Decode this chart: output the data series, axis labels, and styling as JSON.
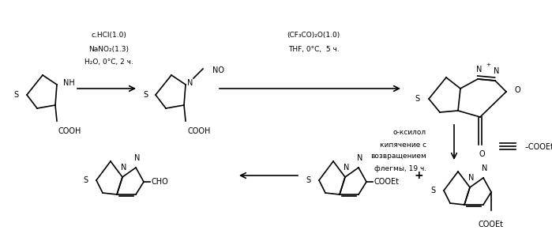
{
  "bg_color": "#ffffff",
  "fig_width": 6.99,
  "fig_height": 2.96,
  "dpi": 100,
  "text_color": "#000000",
  "lw": 1.2,
  "fs": 7.0,
  "fs_label": 6.5,
  "arrow_conditions": {
    "arrow1_label": [
      "c.HCl(1.0)",
      "NaNO₂(1.3)",
      "H₂O, 0°C, 2 ч."
    ],
    "arrow2_label": [
      "(CF₃CO)₂O(1.0)",
      "THF, 0°C,  5 ч."
    ],
    "arrow3_label": [
      "о-ксилол",
      "кипячение с",
      "возвращением",
      "флегмы, 19 ч."
    ]
  }
}
